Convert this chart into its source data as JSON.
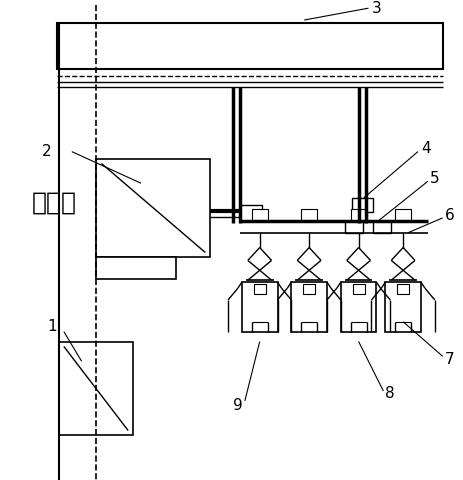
{
  "fig_width": 4.64,
  "fig_height": 4.8,
  "dpi": 100,
  "bg_color": "#ffffff",
  "line_color": "#000000",
  "chinese_text": "安装面",
  "labels": [
    "1",
    "2",
    "3",
    "4",
    "5",
    "6",
    "7",
    "8",
    "9"
  ]
}
